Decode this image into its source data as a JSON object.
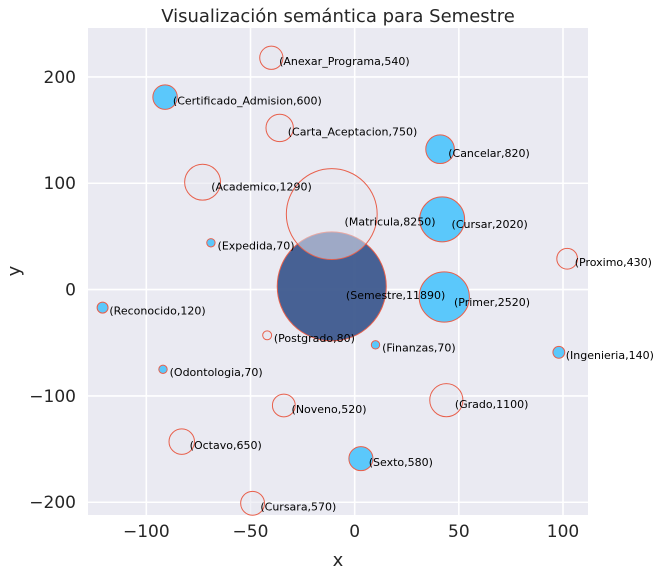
{
  "chart_data": {
    "type": "scatter",
    "title": "Visualización semántica para Semestre",
    "xlabel": "x",
    "ylabel": "y",
    "xlim": [
      -128,
      112
    ],
    "ylim": [
      -212,
      246
    ],
    "xticks": [
      -100,
      -50,
      0,
      50,
      100
    ],
    "yticks": [
      -200,
      -100,
      0,
      100,
      200
    ],
    "grid": true,
    "colors": {
      "background": "#eaeaf2",
      "grid": "#ffffff",
      "edge": "#e8604c",
      "filled_light": "#5bc8fb",
      "filled_center": "#3e5a8e",
      "hollow": "#e5e6ee"
    },
    "points": [
      {
        "label": "(Semestre,11890)",
        "word": "Semestre",
        "weight": 11890,
        "x": -11,
        "y": 3,
        "fill": "center"
      },
      {
        "label": "(Matricula,8250)",
        "word": "Matricula",
        "weight": 8250,
        "x": -11,
        "y": 71,
        "fill": "hollow"
      },
      {
        "label": "(Primer,2520)",
        "word": "Primer",
        "weight": 2520,
        "x": 43,
        "y": -7,
        "fill": "light"
      },
      {
        "label": "(Cursar,2020)",
        "word": "Cursar",
        "weight": 2020,
        "x": 42,
        "y": 66,
        "fill": "light"
      },
      {
        "label": "(Academico,1290)",
        "word": "Academico",
        "weight": 1290,
        "x": -73,
        "y": 101,
        "fill": "hollow"
      },
      {
        "label": "(Grado,1100)",
        "word": "Grado",
        "weight": 1100,
        "x": 44,
        "y": -104,
        "fill": "hollow"
      },
      {
        "label": "(Cancelar,820)",
        "word": "Cancelar",
        "weight": 820,
        "x": 41,
        "y": 132,
        "fill": "light"
      },
      {
        "label": "(Carta_Aceptacion,750)",
        "word": "Carta_Aceptacion",
        "weight": 750,
        "x": -36,
        "y": 152,
        "fill": "hollow"
      },
      {
        "label": "(Octavo,650)",
        "word": "Octavo",
        "weight": 650,
        "x": -83,
        "y": -143,
        "fill": "hollow"
      },
      {
        "label": "(Certificado_Admision,600)",
        "word": "Certificado_Admision",
        "weight": 600,
        "x": -91,
        "y": 181,
        "fill": "light"
      },
      {
        "label": "(Sexto,580)",
        "word": "Sexto",
        "weight": 580,
        "x": 3,
        "y": -159,
        "fill": "light"
      },
      {
        "label": "(Cursara,570)",
        "word": "Cursara",
        "weight": 570,
        "x": -49,
        "y": -201,
        "fill": "hollow"
      },
      {
        "label": "(Anexar_Programa,540)",
        "word": "Anexar_Programa",
        "weight": 540,
        "x": -40,
        "y": 218,
        "fill": "hollow"
      },
      {
        "label": "(Noveno,520)",
        "word": "Noveno",
        "weight": 520,
        "x": -34,
        "y": -109,
        "fill": "hollow"
      },
      {
        "label": "(Proximo,430)",
        "word": "Proximo",
        "weight": 430,
        "x": 102,
        "y": 29,
        "fill": "hollow"
      },
      {
        "label": "(Ingenieria,140)",
        "word": "Ingenieria",
        "weight": 140,
        "x": 98,
        "y": -59,
        "fill": "light"
      },
      {
        "label": "(Reconocido,120)",
        "word": "Reconocido",
        "weight": 120,
        "x": -121,
        "y": -17,
        "fill": "light"
      },
      {
        "label": "(Postgrado,80)",
        "word": "Postgrado",
        "weight": 80,
        "x": -42,
        "y": -43,
        "fill": "hollow"
      },
      {
        "label": "(Expedida,70)",
        "word": "Expedida",
        "weight": 70,
        "x": -69,
        "y": 44,
        "fill": "light"
      },
      {
        "label": "(Finanzas,70)",
        "word": "Finanzas",
        "weight": 70,
        "x": 10,
        "y": -52,
        "fill": "light"
      },
      {
        "label": "(Odontologia,70)",
        "word": "Odontologia",
        "weight": 70,
        "x": -92,
        "y": -75,
        "fill": "light"
      }
    ]
  }
}
